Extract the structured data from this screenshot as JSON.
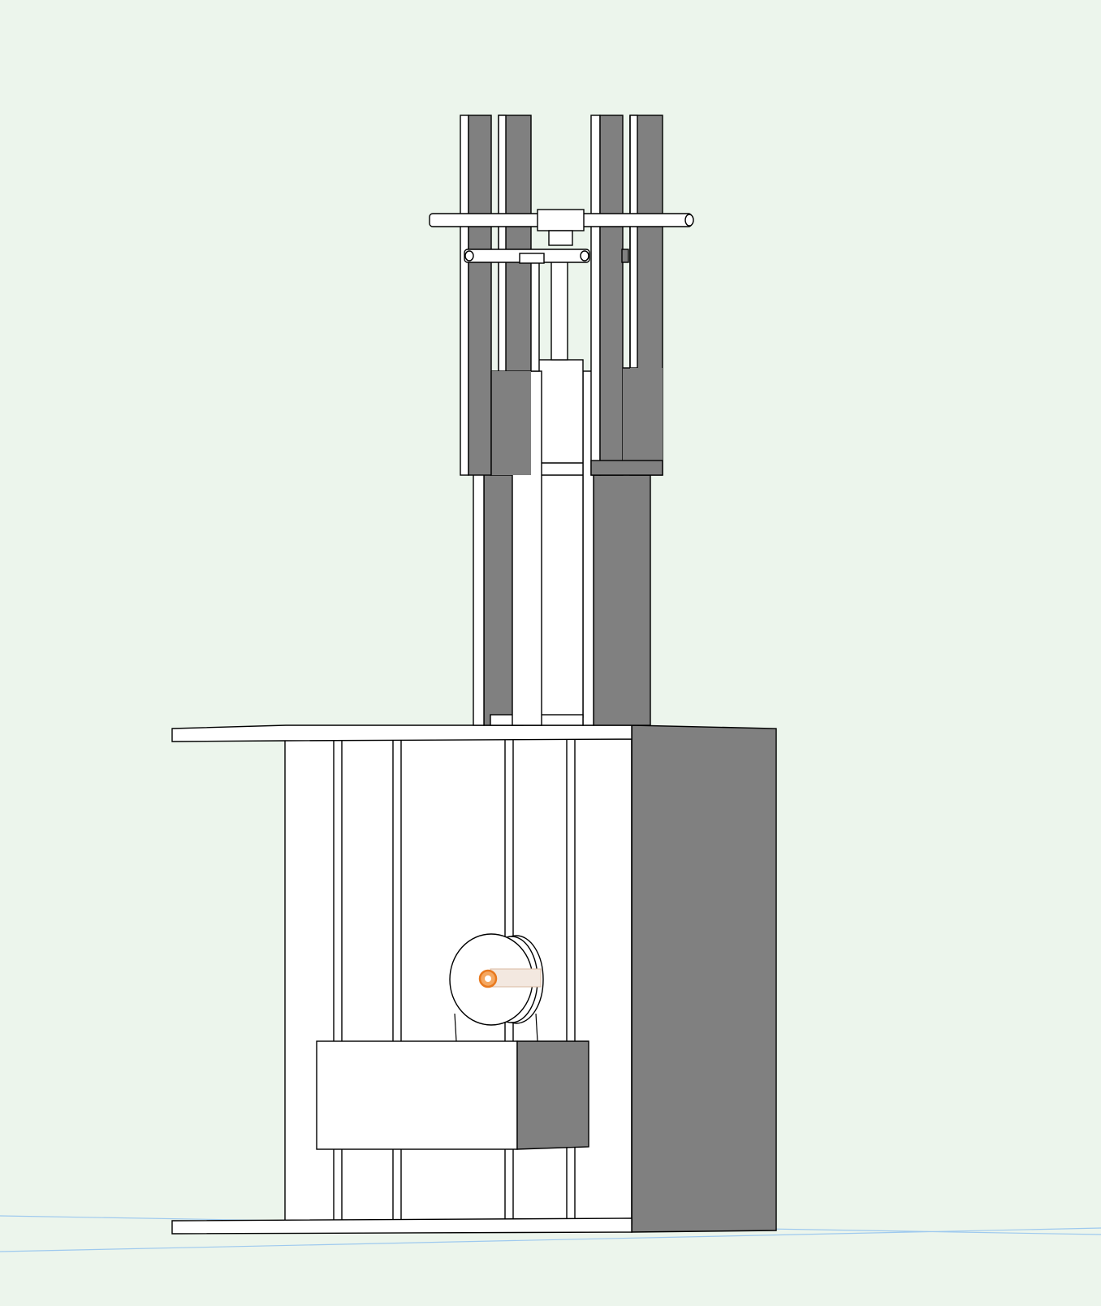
{
  "viewport": {
    "background": "#ecf5ec",
    "labels": []
  },
  "colors": {
    "face": "#ffffff",
    "shade": "#808080",
    "edge": "#000000",
    "ground_line": "#9ec9ee",
    "highlight": "#e8791e"
  },
  "model": {
    "parts": [
      "base-cabinet",
      "top-plate",
      "bottom-plate",
      "vertical-rods",
      "mast-columns",
      "cylinder",
      "piston-rod",
      "top-crossbar",
      "upper-forks",
      "pulley-wheel",
      "lower-block"
    ]
  }
}
